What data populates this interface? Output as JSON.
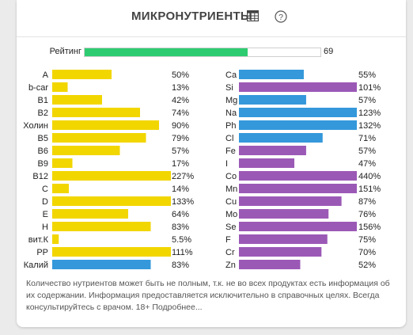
{
  "panel": {
    "title": "МИКРОНУТРИЕНТЫ",
    "table_icon": "table-icon",
    "help_icon": "help-circle-icon"
  },
  "rating": {
    "label": "Рейтинг",
    "value": 69,
    "value_text": "69",
    "max": 100,
    "color": "#2ecc71"
  },
  "colors": {
    "yellow": "#f2d600",
    "blue": "#3498db",
    "purple": "#9b59b6"
  },
  "chart_data": {
    "type": "bar",
    "orientation": "horizontal",
    "scale_max_percent": 100,
    "columns": [
      {
        "rows": [
          {
            "label": "A",
            "value": 50,
            "display": "50%",
            "color": "#f2d600"
          },
          {
            "label": "b-car",
            "value": 13,
            "display": "13%",
            "color": "#f2d600"
          },
          {
            "label": "B1",
            "value": 42,
            "display": "42%",
            "color": "#f2d600"
          },
          {
            "label": "B2",
            "value": 74,
            "display": "74%",
            "color": "#f2d600"
          },
          {
            "label": "Холин",
            "value": 90,
            "display": "90%",
            "color": "#f2d600"
          },
          {
            "label": "B5",
            "value": 79,
            "display": "79%",
            "color": "#f2d600"
          },
          {
            "label": "B6",
            "value": 57,
            "display": "57%",
            "color": "#f2d600"
          },
          {
            "label": "B9",
            "value": 17,
            "display": "17%",
            "color": "#f2d600"
          },
          {
            "label": "B12",
            "value": 227,
            "display": "227%",
            "color": "#f2d600"
          },
          {
            "label": "C",
            "value": 14,
            "display": "14%",
            "color": "#f2d600"
          },
          {
            "label": "D",
            "value": 133,
            "display": "133%",
            "color": "#f2d600"
          },
          {
            "label": "E",
            "value": 64,
            "display": "64%",
            "color": "#f2d600"
          },
          {
            "label": "H",
            "value": 83,
            "display": "83%",
            "color": "#f2d600"
          },
          {
            "label": "вит.К",
            "value": 5.5,
            "display": "5.5%",
            "color": "#f2d600"
          },
          {
            "label": "PP",
            "value": 111,
            "display": "111%",
            "color": "#f2d600"
          },
          {
            "label": "Калий",
            "value": 83,
            "display": "83%",
            "color": "#3498db"
          }
        ]
      },
      {
        "rows": [
          {
            "label": "Ca",
            "value": 55,
            "display": "55%",
            "color": "#3498db"
          },
          {
            "label": "Si",
            "value": 101,
            "display": "101%",
            "color": "#9b59b6"
          },
          {
            "label": "Mg",
            "value": 57,
            "display": "57%",
            "color": "#3498db"
          },
          {
            "label": "Na",
            "value": 123,
            "display": "123%",
            "color": "#3498db"
          },
          {
            "label": "Ph",
            "value": 132,
            "display": "132%",
            "color": "#3498db"
          },
          {
            "label": "Cl",
            "value": 71,
            "display": "71%",
            "color": "#3498db"
          },
          {
            "label": "Fe",
            "value": 57,
            "display": "57%",
            "color": "#9b59b6"
          },
          {
            "label": "I",
            "value": 47,
            "display": "47%",
            "color": "#9b59b6"
          },
          {
            "label": "Co",
            "value": 440,
            "display": "440%",
            "color": "#9b59b6"
          },
          {
            "label": "Mn",
            "value": 151,
            "display": "151%",
            "color": "#9b59b6"
          },
          {
            "label": "Cu",
            "value": 87,
            "display": "87%",
            "color": "#9b59b6"
          },
          {
            "label": "Mo",
            "value": 76,
            "display": "76%",
            "color": "#9b59b6"
          },
          {
            "label": "Se",
            "value": 156,
            "display": "156%",
            "color": "#9b59b6"
          },
          {
            "label": "F",
            "value": 75,
            "display": "75%",
            "color": "#9b59b6"
          },
          {
            "label": "Cr",
            "value": 70,
            "display": "70%",
            "color": "#9b59b6"
          },
          {
            "label": "Zn",
            "value": 52,
            "display": "52%",
            "color": "#9b59b6"
          }
        ]
      }
    ]
  },
  "footnote": {
    "text": "Количество нутриентов может быть не полным, т.к. не во всех продуктах есть информация об их содержании. Информация предоставляется исключительно в справочных целях. Всегда консультируйтесь с врачом. 18+",
    "more_label": "Подробнее..."
  }
}
